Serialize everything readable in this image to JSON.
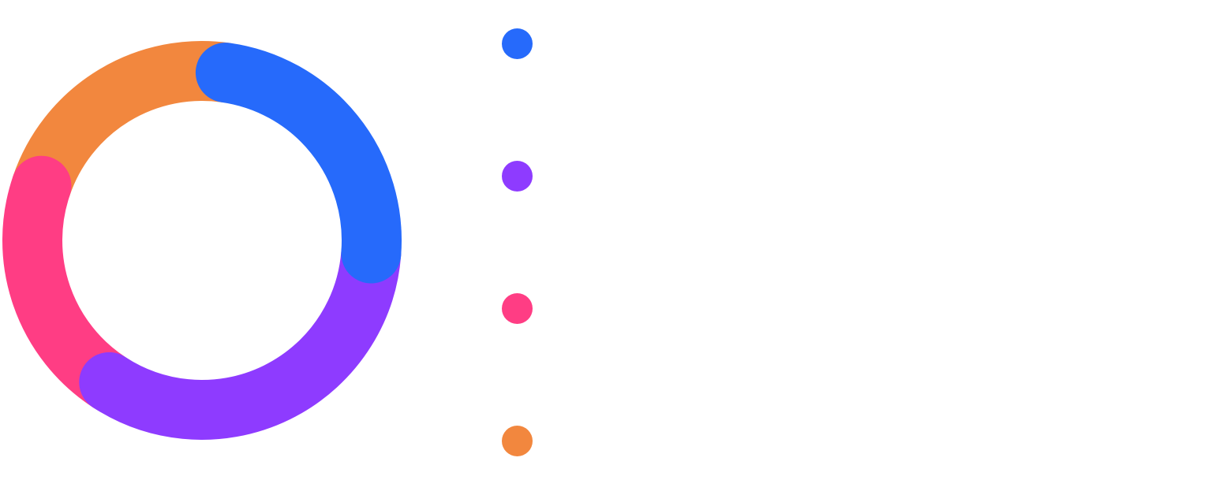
{
  "chart_data": {
    "type": "pie",
    "variant": "donut",
    "title": "",
    "rounded_segment_ends": true,
    "grid": false,
    "legend_placement": "right",
    "series": [
      {
        "name": "",
        "color": "#266AFB",
        "value": 24
      },
      {
        "name": "",
        "color": "#8E3BFF",
        "value": 33
      },
      {
        "name": "",
        "color": "#FF3D84",
        "value": 21
      },
      {
        "name": "",
        "color": "#F2873E",
        "value": 22
      }
    ]
  }
}
